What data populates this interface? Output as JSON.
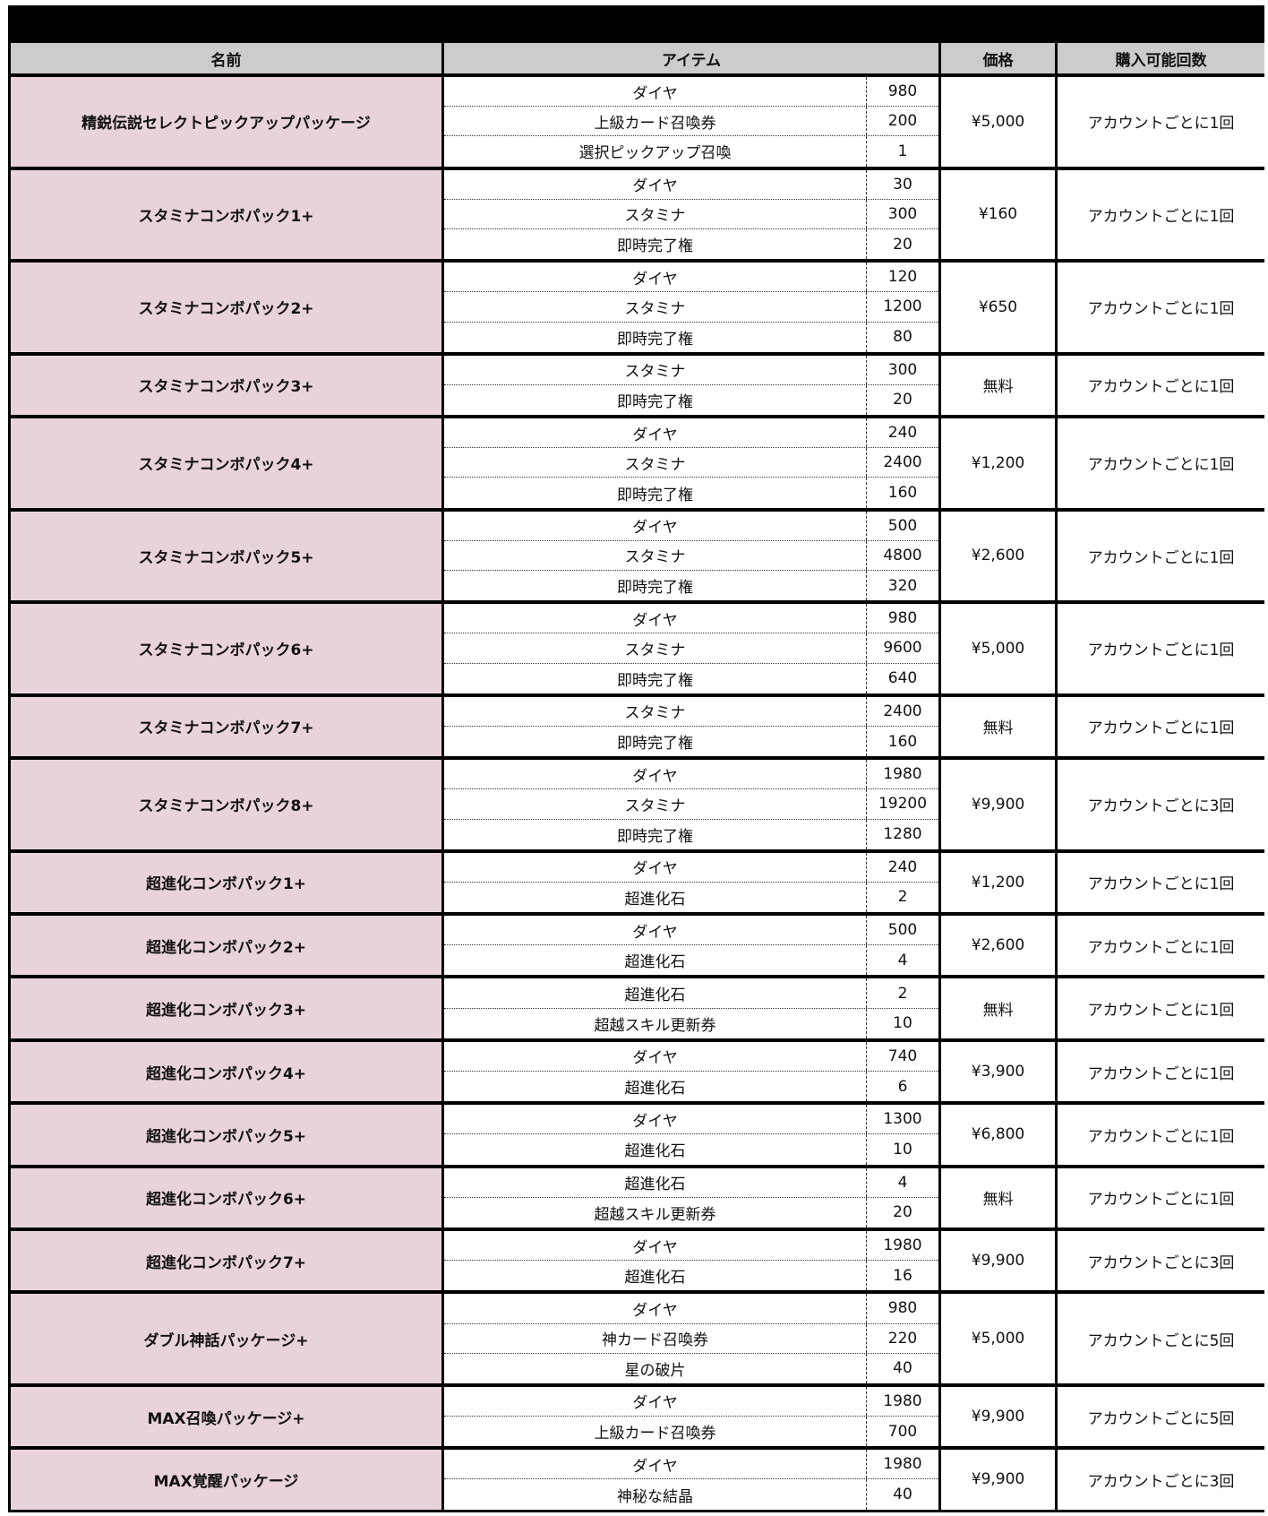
{
  "headers": {
    "name": "名前",
    "items": "アイテム",
    "price": "価格",
    "limit": "購入可能回数"
  },
  "packages": [
    {
      "name": "精鋭伝説セレクトピックアップパッケージ",
      "items": [
        [
          "ダイヤ",
          "980"
        ],
        [
          "上級カード召喚券",
          "200"
        ],
        [
          "選択ピックアップ召喚",
          "1"
        ]
      ],
      "price": "¥5,000",
      "limit": "アカウントごとに1回"
    },
    {
      "name": "スタミナコンボパック1+",
      "items": [
        [
          "ダイヤ",
          "30"
        ],
        [
          "スタミナ",
          "300"
        ],
        [
          "即時完了権",
          "20"
        ]
      ],
      "price": "¥160",
      "limit": "アカウントごとに1回"
    },
    {
      "name": "スタミナコンボパック2+",
      "items": [
        [
          "ダイヤ",
          "120"
        ],
        [
          "スタミナ",
          "1200"
        ],
        [
          "即時完了権",
          "80"
        ]
      ],
      "price": "¥650",
      "limit": "アカウントごとに1回"
    },
    {
      "name": "スタミナコンボパック3+",
      "items": [
        [
          "スタミナ",
          "300"
        ],
        [
          "即時完了権",
          "20"
        ]
      ],
      "price": "無料",
      "limit": "アカウントごとに1回"
    },
    {
      "name": "スタミナコンボパック4+",
      "items": [
        [
          "ダイヤ",
          "240"
        ],
        [
          "スタミナ",
          "2400"
        ],
        [
          "即時完了権",
          "160"
        ]
      ],
      "price": "¥1,200",
      "limit": "アカウントごとに1回"
    },
    {
      "name": "スタミナコンボパック5+",
      "items": [
        [
          "ダイヤ",
          "500"
        ],
        [
          "スタミナ",
          "4800"
        ],
        [
          "即時完了権",
          "320"
        ]
      ],
      "price": "¥2,600",
      "limit": "アカウントごとに1回"
    },
    {
      "name": "スタミナコンボパック6+",
      "items": [
        [
          "ダイヤ",
          "980"
        ],
        [
          "スタミナ",
          "9600"
        ],
        [
          "即時完了権",
          "640"
        ]
      ],
      "price": "¥5,000",
      "limit": "アカウントごとに1回"
    },
    {
      "name": "スタミナコンボパック7+",
      "items": [
        [
          "スタミナ",
          "2400"
        ],
        [
          "即時完了権",
          "160"
        ]
      ],
      "price": "無料",
      "limit": "アカウントごとに1回"
    },
    {
      "name": "スタミナコンボパック8+",
      "items": [
        [
          "ダイヤ",
          "1980"
        ],
        [
          "スタミナ",
          "19200"
        ],
        [
          "即時完了権",
          "1280"
        ]
      ],
      "price": "¥9,900",
      "limit": "アカウントごとに3回"
    },
    {
      "name": "超進化コンボパック1+",
      "items": [
        [
          "ダイヤ",
          "240"
        ],
        [
          "超進化石",
          "2"
        ]
      ],
      "price": "¥1,200",
      "limit": "アカウントごとに1回"
    },
    {
      "name": "超進化コンボパック2+",
      "items": [
        [
          "ダイヤ",
          "500"
        ],
        [
          "超進化石",
          "4"
        ]
      ],
      "price": "¥2,600",
      "limit": "アカウントごとに1回"
    },
    {
      "name": "超進化コンボパック3+",
      "items": [
        [
          "超進化石",
          "2"
        ],
        [
          "超越スキル更新券",
          "10"
        ]
      ],
      "price": "無料",
      "limit": "アカウントごとに1回"
    },
    {
      "name": "超進化コンボパック4+",
      "items": [
        [
          "ダイヤ",
          "740"
        ],
        [
          "超進化石",
          "6"
        ]
      ],
      "price": "¥3,900",
      "limit": "アカウントごとに1回"
    },
    {
      "name": "超進化コンボパック5+",
      "items": [
        [
          "ダイヤ",
          "1300"
        ],
        [
          "超進化石",
          "10"
        ]
      ],
      "price": "¥6,800",
      "limit": "アカウントごとに1回"
    },
    {
      "name": "超進化コンボパック6+",
      "items": [
        [
          "超進化石",
          "4"
        ],
        [
          "超越スキル更新券",
          "20"
        ]
      ],
      "price": "無料",
      "limit": "アカウントごとに1回"
    },
    {
      "name": "超進化コンボパック7+",
      "items": [
        [
          "ダイヤ",
          "1980"
        ],
        [
          "超進化石",
          "16"
        ]
      ],
      "price": "¥9,900",
      "limit": "アカウントごとに3回"
    },
    {
      "name": "ダブル神話パッケージ+",
      "items": [
        [
          "ダイヤ",
          "980"
        ],
        [
          "神カード召喚券",
          "220"
        ],
        [
          "星の破片",
          "40"
        ]
      ],
      "price": "¥5,000",
      "limit": "アカウントごとに5回"
    },
    {
      "name": "MAX召喚パッケージ+",
      "items": [
        [
          "ダイヤ",
          "1980"
        ],
        [
          "上級カード召喚券",
          "700"
        ]
      ],
      "price": "¥9,900",
      "limit": "アカウントごとに5回"
    },
    {
      "name": "MAX覚醒パッケージ",
      "items": [
        [
          "ダイヤ",
          "1980"
        ],
        [
          "神秘な結晶",
          "40"
        ]
      ],
      "price": "¥9,900",
      "limit": "アカウントごとに3回"
    }
  ]
}
